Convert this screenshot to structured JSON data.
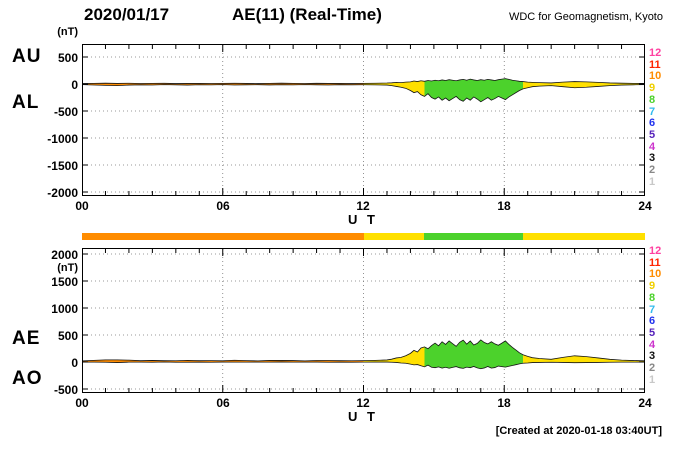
{
  "header": {
    "date": "2020/01/17",
    "title": "AE(11) (Real-Time)",
    "source": "WDC for Geomagnetism, Kyoto"
  },
  "footer": {
    "created": "[Created at 2020-01-18 03:40UT]"
  },
  "legend_counts": [
    {
      "n": "12",
      "color": "#ff40a0"
    },
    {
      "n": "11",
      "color": "#ff2400"
    },
    {
      "n": "10",
      "color": "#ff8c00"
    },
    {
      "n": "9",
      "color": "#f0d000"
    },
    {
      "n": "8",
      "color": "#4cd22c"
    },
    {
      "n": "7",
      "color": "#33bbee"
    },
    {
      "n": "6",
      "color": "#2233ee"
    },
    {
      "n": "5",
      "color": "#5522bb"
    },
    {
      "n": "4",
      "color": "#cc33cc"
    },
    {
      "n": "3",
      "color": "#111111"
    },
    {
      "n": "2",
      "color": "#888888"
    },
    {
      "n": "1",
      "color": "#c8c8c8"
    }
  ],
  "station_bar": {
    "segments": [
      {
        "t0": 0,
        "t1": 12,
        "color": "#ff8c00"
      },
      {
        "t0": 12,
        "t1": 14.6,
        "color": "#ffe000"
      },
      {
        "t0": 14.6,
        "t1": 18.8,
        "color": "#4cd22c"
      },
      {
        "t0": 18.8,
        "t1": 24,
        "color": "#ffe000"
      }
    ]
  },
  "chart_data": [
    {
      "type": "area",
      "title": "AU and AL indices",
      "labels_left": [
        "AU",
        "AL"
      ],
      "ylabel": "(nT)",
      "ylim": [
        -2000,
        500
      ],
      "yticks": [
        500,
        0,
        -500,
        -1000,
        -1500,
        -2000
      ],
      "xlabel": "U T",
      "xticks": [
        "00",
        "06",
        "12",
        "18",
        "24"
      ],
      "grid": "dotted",
      "x": [
        0,
        0.5,
        1,
        1.5,
        2,
        2.5,
        3,
        3.5,
        4,
        4.5,
        5,
        5.5,
        6,
        6.5,
        7,
        7.5,
        8,
        8.5,
        9,
        9.5,
        10,
        10.5,
        11,
        11.5,
        12,
        12.5,
        13,
        13.2,
        13.4,
        13.6,
        13.8,
        14,
        14.15,
        14.3,
        14.45,
        14.6,
        14.75,
        14.9,
        15.05,
        15.2,
        15.35,
        15.5,
        15.65,
        15.8,
        15.95,
        16.1,
        16.25,
        16.4,
        16.55,
        16.7,
        16.85,
        17,
        17.15,
        17.3,
        17.45,
        17.6,
        17.75,
        17.9,
        18.05,
        18.2,
        18.35,
        18.5,
        18.65,
        18.8,
        19,
        19.2,
        19.5,
        20,
        20.5,
        21,
        21.5,
        22,
        22.5,
        23,
        23.5,
        24
      ],
      "series": [
        {
          "name": "AU",
          "values": [
            8,
            12,
            15,
            10,
            14,
            9,
            11,
            13,
            8,
            10,
            12,
            9,
            11,
            14,
            10,
            8,
            12,
            15,
            11,
            9,
            13,
            10,
            12,
            8,
            11,
            14,
            18,
            22,
            30,
            25,
            35,
            40,
            55,
            45,
            60,
            50,
            65,
            55,
            70,
            60,
            75,
            65,
            80,
            70,
            60,
            75,
            85,
            70,
            90,
            75,
            65,
            80,
            70,
            85,
            75,
            65,
            80,
            90,
            100,
            85,
            70,
            60,
            50,
            45,
            35,
            30,
            25,
            20,
            35,
            45,
            40,
            30,
            20,
            15,
            12,
            10
          ]
        },
        {
          "name": "AL",
          "values": [
            -12,
            -18,
            -25,
            -30,
            -20,
            -15,
            -18,
            -12,
            -15,
            -20,
            -14,
            -16,
            -12,
            -18,
            -15,
            -13,
            -17,
            -14,
            -16,
            -12,
            -15,
            -18,
            -13,
            -15,
            -14,
            -16,
            -20,
            -30,
            -45,
            -60,
            -80,
            -120,
            -160,
            -140,
            -200,
            -230,
            -180,
            -250,
            -280,
            -240,
            -300,
            -260,
            -310,
            -270,
            -230,
            -290,
            -320,
            -260,
            -300,
            -240,
            -280,
            -330,
            -290,
            -250,
            -300,
            -270,
            -230,
            -260,
            -290,
            -240,
            -200,
            -160,
            -120,
            -90,
            -70,
            -50,
            -40,
            -30,
            -50,
            -70,
            -60,
            -45,
            -30,
            -20,
            -15,
            -12
          ]
        }
      ]
    },
    {
      "type": "area",
      "title": "AE and AO indices",
      "labels_left": [
        "AE",
        "AO"
      ],
      "ylabel": "(nT)",
      "ylim": [
        -500,
        2000
      ],
      "yticks": [
        2000,
        1500,
        1000,
        500,
        0,
        -500
      ],
      "xlabel": "U T",
      "xticks": [
        "00",
        "06",
        "12",
        "18",
        "24"
      ],
      "grid": "dotted",
      "x": [
        0,
        0.5,
        1,
        1.5,
        2,
        2.5,
        3,
        3.5,
        4,
        4.5,
        5,
        5.5,
        6,
        6.5,
        7,
        7.5,
        8,
        8.5,
        9,
        9.5,
        10,
        10.5,
        11,
        11.5,
        12,
        12.5,
        13,
        13.2,
        13.4,
        13.6,
        13.8,
        14,
        14.15,
        14.3,
        14.45,
        14.6,
        14.75,
        14.9,
        15.05,
        15.2,
        15.35,
        15.5,
        15.65,
        15.8,
        15.95,
        16.1,
        16.25,
        16.4,
        16.55,
        16.7,
        16.85,
        17,
        17.15,
        17.3,
        17.45,
        17.6,
        17.75,
        17.9,
        18.05,
        18.2,
        18.35,
        18.5,
        18.65,
        18.8,
        19,
        19.2,
        19.5,
        20,
        20.5,
        21,
        21.5,
        22,
        22.5,
        23,
        23.5,
        24
      ],
      "series": [
        {
          "name": "AE",
          "values": [
            20,
            30,
            40,
            40,
            34,
            24,
            29,
            25,
            23,
            30,
            26,
            25,
            23,
            32,
            25,
            21,
            29,
            29,
            27,
            21,
            28,
            28,
            25,
            23,
            25,
            30,
            38,
            52,
            75,
            85,
            115,
            160,
            215,
            185,
            260,
            280,
            245,
            305,
            350,
            300,
            375,
            325,
            390,
            340,
            290,
            365,
            405,
            330,
            390,
            315,
            345,
            410,
            360,
            335,
            375,
            335,
            310,
            350,
            390,
            325,
            270,
            220,
            170,
            135,
            105,
            80,
            65,
            50,
            85,
            115,
            100,
            75,
            50,
            35,
            27,
            22
          ]
        },
        {
          "name": "AO",
          "values": [
            -2,
            -3,
            -5,
            -10,
            -3,
            -3,
            -4,
            1,
            -4,
            -5,
            -1,
            -4,
            -1,
            -2,
            -3,
            -3,
            -3,
            1,
            -3,
            -2,
            -1,
            -4,
            -1,
            -4,
            -2,
            -1,
            -1,
            -4,
            -8,
            -18,
            -23,
            -40,
            -53,
            -48,
            -70,
            -90,
            -58,
            -98,
            -105,
            -90,
            -113,
            -98,
            -115,
            -100,
            -85,
            -108,
            -118,
            -95,
            -105,
            -83,
            -108,
            -125,
            -110,
            -83,
            -113,
            -103,
            -75,
            -85,
            -95,
            -78,
            -65,
            -50,
            -35,
            -23,
            -18,
            -10,
            -8,
            -5,
            -8,
            -13,
            -10,
            -8,
            -5,
            -3,
            -2,
            -1
          ]
        }
      ]
    }
  ]
}
